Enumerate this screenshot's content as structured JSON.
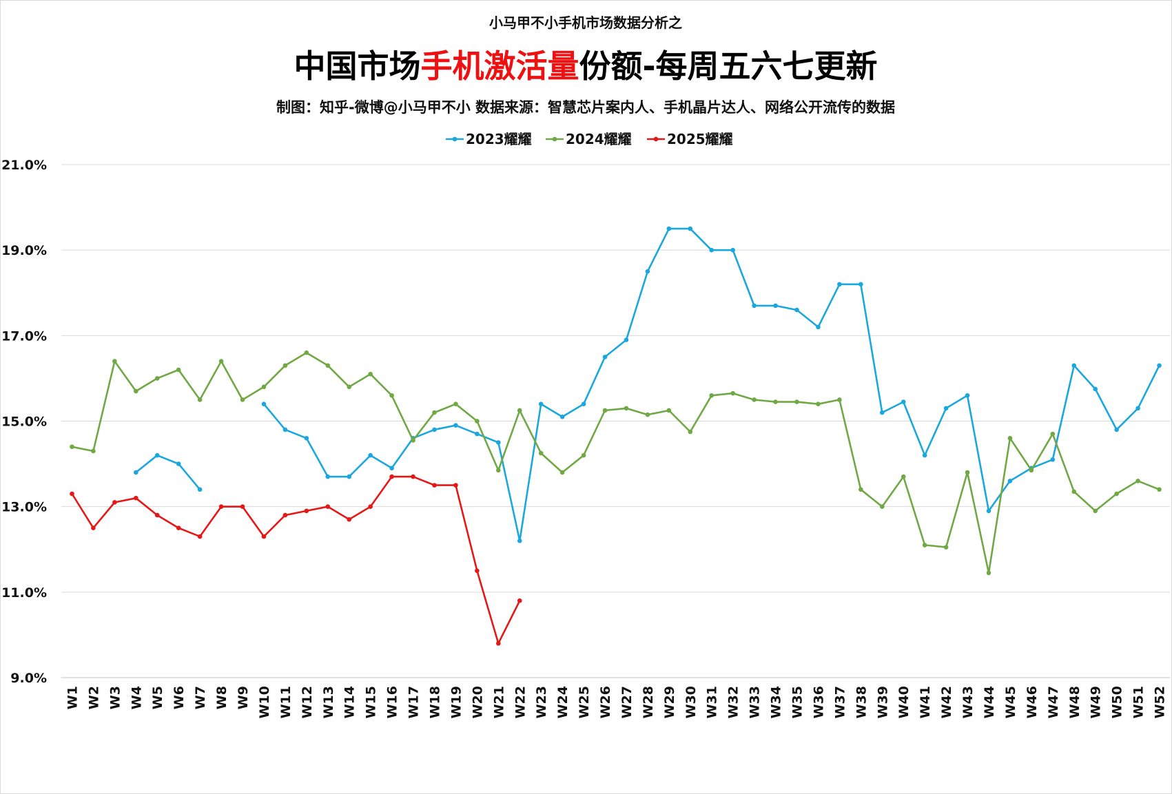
{
  "chart_data": {
    "type": "line",
    "supertitle": "小马甲不小手机市场数据分析之",
    "title_parts": [
      {
        "text": "中国市场",
        "color": "#000000"
      },
      {
        "text": "手机激活量",
        "color": "#ee1111"
      },
      {
        "text": "份额-每周五六七更新",
        "color": "#000000"
      }
    ],
    "subtitle": "制图：知乎-微博@小马甲不小  数据来源：智慧芯片案内人、手机晶片达人、网络公开流传的数据",
    "categories": [
      "W1",
      "W2",
      "W3",
      "W4",
      "W5",
      "W6",
      "W7",
      "W8",
      "W9",
      "W10",
      "W11",
      "W12",
      "W13",
      "W14",
      "W15",
      "W16",
      "W17",
      "W18",
      "W19",
      "W20",
      "W21",
      "W22",
      "W23",
      "W24",
      "W25",
      "W26",
      "W27",
      "W28",
      "W29",
      "W30",
      "W31",
      "W32",
      "W33",
      "W34",
      "W35",
      "W36",
      "W37",
      "W38",
      "W39",
      "W40",
      "W41",
      "W42",
      "W43",
      "W44",
      "W45",
      "W46",
      "W47",
      "W48",
      "W49",
      "W50",
      "W51",
      "W52"
    ],
    "series": [
      {
        "name": "2023耀耀",
        "color": "#1aa7dd",
        "values": [
          null,
          null,
          null,
          13.8,
          14.2,
          14.0,
          13.4,
          null,
          null,
          15.4,
          14.8,
          14.6,
          13.7,
          13.7,
          14.2,
          13.9,
          14.6,
          14.8,
          14.9,
          14.7,
          14.5,
          12.2,
          15.4,
          15.1,
          15.4,
          16.5,
          16.9,
          18.5,
          19.5,
          19.5,
          19.0,
          19.0,
          17.7,
          17.7,
          17.6,
          17.2,
          18.2,
          18.2,
          15.2,
          15.45,
          14.2,
          15.3,
          15.6,
          12.9,
          13.6,
          13.9,
          14.1,
          16.3,
          15.75,
          14.8,
          15.3,
          16.3
        ]
      },
      {
        "name": "2024耀耀",
        "color": "#70a844",
        "values": [
          14.4,
          14.3,
          16.4,
          15.7,
          16.0,
          16.2,
          15.5,
          16.4,
          15.5,
          15.8,
          16.3,
          16.6,
          16.3,
          15.8,
          16.1,
          15.6,
          14.55,
          15.2,
          15.4,
          15.0,
          13.85,
          15.25,
          14.25,
          13.8,
          14.2,
          15.25,
          15.3,
          15.15,
          15.25,
          14.75,
          15.6,
          15.65,
          15.5,
          15.45,
          15.45,
          15.4,
          15.5,
          13.4,
          13.0,
          13.7,
          12.1,
          12.05,
          13.8,
          11.45,
          14.6,
          13.85,
          14.7,
          13.35,
          12.9,
          13.3,
          13.6,
          13.4
        ]
      },
      {
        "name": "2025耀耀",
        "color": "#e61717",
        "values": [
          13.3,
          12.5,
          13.1,
          13.2,
          12.8,
          12.5,
          12.3,
          13.0,
          13.0,
          12.3,
          12.8,
          12.9,
          13.0,
          12.7,
          13.0,
          13.7,
          13.7,
          13.5,
          13.5,
          11.5,
          9.8,
          10.8,
          null,
          null,
          null,
          null,
          null,
          null,
          null,
          null,
          null,
          null,
          null,
          null,
          null,
          null,
          null,
          null,
          null,
          null,
          null,
          null,
          null,
          null,
          null,
          null,
          null,
          null,
          null,
          null,
          null,
          null
        ]
      }
    ],
    "ylim": [
      9,
      21
    ],
    "yticks": [
      {
        "value": 9,
        "label": "9.0%"
      },
      {
        "value": 11,
        "label": "11.0%"
      },
      {
        "value": 13,
        "label": "13.0%"
      },
      {
        "value": 15,
        "label": "15.0%"
      },
      {
        "value": 17,
        "label": "17.0%"
      },
      {
        "value": 19,
        "label": "19.0%"
      },
      {
        "value": 21,
        "label": "21.0%"
      }
    ],
    "grid": true,
    "legend": "top"
  }
}
